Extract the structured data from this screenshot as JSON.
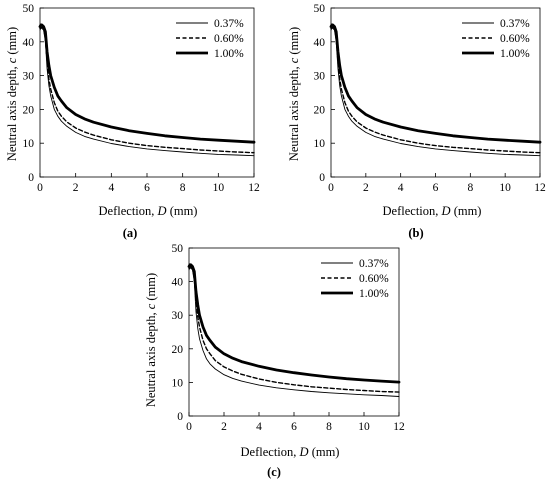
{
  "chart_data": [
    {
      "type": "line",
      "panel_label": "(a)",
      "xlabel_prefix": "Deflection,",
      "xlabel_var": "D",
      "xlabel_unit": "(mm)",
      "ylabel_prefix": "Neutral axis depth,",
      "ylabel_var": "c",
      "ylabel_unit": "(mm)",
      "xlim": [
        0,
        12
      ],
      "ylim": [
        0,
        50
      ],
      "xticks": [
        0,
        2,
        4,
        6,
        8,
        10,
        12
      ],
      "yticks": [
        0,
        10,
        20,
        30,
        40,
        50
      ],
      "grid": false,
      "legend_position": "top-right",
      "series": [
        {
          "name": "0.37%",
          "style": "thin-solid",
          "x": [
            0,
            0.05,
            0.1,
            0.2,
            0.3,
            0.4,
            0.5,
            0.6,
            0.8,
            1.0,
            1.2,
            1.5,
            2,
            2.5,
            3,
            4,
            5,
            6,
            7,
            8,
            9,
            10,
            11,
            12
          ],
          "y": [
            43.5,
            44,
            44,
            43.5,
            40,
            32,
            27,
            24,
            20,
            18,
            16.5,
            15,
            13.2,
            12,
            11.2,
            9.9,
            9,
            8.3,
            7.8,
            7.4,
            7,
            6.7,
            6.5,
            6.3
          ]
        },
        {
          "name": "0.60%",
          "style": "dashed",
          "x": [
            0,
            0.05,
            0.1,
            0.2,
            0.3,
            0.4,
            0.5,
            0.6,
            0.8,
            1.0,
            1.2,
            1.5,
            2,
            2.5,
            3,
            4,
            5,
            6,
            7,
            8,
            9,
            10,
            11,
            12
          ],
          "y": [
            44,
            44.3,
            44.3,
            44,
            41,
            34,
            29,
            26,
            22,
            19.5,
            18,
            16.3,
            14.5,
            13.3,
            12.4,
            11,
            10,
            9.3,
            8.8,
            8.4,
            8,
            7.7,
            7.4,
            7.2
          ]
        },
        {
          "name": "1.00%",
          "style": "thick-solid",
          "x": [
            0,
            0.05,
            0.1,
            0.2,
            0.3,
            0.4,
            0.5,
            0.6,
            0.8,
            1.0,
            1.2,
            1.5,
            2,
            2.5,
            3,
            4,
            5,
            6,
            7,
            8,
            9,
            10,
            11,
            12
          ],
          "y": [
            44.5,
            45,
            45,
            44.5,
            43,
            37,
            33,
            30,
            26.5,
            24,
            22.5,
            20.5,
            18.5,
            17.2,
            16.2,
            14.8,
            13.7,
            12.9,
            12.2,
            11.7,
            11.2,
            10.9,
            10.6,
            10.3
          ]
        }
      ]
    },
    {
      "type": "line",
      "panel_label": "(b)",
      "xlabel_prefix": "Deflection,",
      "xlabel_var": "D",
      "xlabel_unit": "(mm)",
      "ylabel_prefix": "Neutral axis depth,",
      "ylabel_var": "c",
      "ylabel_unit": "(mm)",
      "xlim": [
        0,
        12
      ],
      "ylim": [
        0,
        50
      ],
      "xticks": [
        0,
        2,
        4,
        6,
        8,
        10,
        12
      ],
      "yticks": [
        0,
        10,
        20,
        30,
        40,
        50
      ],
      "grid": false,
      "legend_position": "top-right",
      "series": [
        {
          "name": "0.37%",
          "style": "thin-solid",
          "x": [
            0,
            0.05,
            0.1,
            0.2,
            0.3,
            0.4,
            0.5,
            0.6,
            0.8,
            1.0,
            1.2,
            1.5,
            2,
            2.5,
            3,
            4,
            5,
            6,
            7,
            8,
            9,
            10,
            11,
            12
          ],
          "y": [
            43.5,
            44,
            44,
            43.5,
            40,
            32,
            27,
            24,
            20,
            18,
            16.5,
            15,
            13.2,
            12,
            11.2,
            9.9,
            9,
            8.3,
            7.8,
            7.4,
            7,
            6.7,
            6.5,
            6.3
          ]
        },
        {
          "name": "0.60%",
          "style": "dashed",
          "x": [
            0,
            0.05,
            0.1,
            0.2,
            0.3,
            0.4,
            0.5,
            0.6,
            0.8,
            1.0,
            1.2,
            1.5,
            2,
            2.5,
            3,
            4,
            5,
            6,
            7,
            8,
            9,
            10,
            11,
            12
          ],
          "y": [
            44,
            44.3,
            44.3,
            44,
            41,
            34,
            29,
            26,
            22,
            19.5,
            18,
            16.3,
            14.5,
            13.3,
            12.4,
            11,
            10,
            9.3,
            8.8,
            8.4,
            8,
            7.7,
            7.4,
            7.2
          ]
        },
        {
          "name": "1.00%",
          "style": "thick-solid",
          "x": [
            0,
            0.05,
            0.1,
            0.2,
            0.3,
            0.4,
            0.5,
            0.6,
            0.8,
            1.0,
            1.2,
            1.5,
            2,
            2.5,
            3,
            4,
            5,
            6,
            7,
            8,
            9,
            10,
            11,
            12
          ],
          "y": [
            44.5,
            45,
            45,
            44.5,
            43,
            37,
            33,
            30,
            26.5,
            24,
            22.5,
            20.5,
            18.5,
            17.2,
            16.2,
            14.8,
            13.7,
            12.9,
            12.2,
            11.7,
            11.2,
            10.9,
            10.6,
            10.3
          ]
        }
      ]
    },
    {
      "type": "line",
      "panel_label": "(c)",
      "xlabel_prefix": "Deflection,",
      "xlabel_var": "D",
      "xlabel_unit": "(mm)",
      "ylabel_prefix": "Neutral axis depth,",
      "ylabel_var": "c",
      "ylabel_unit": "(mm)",
      "xlim": [
        0,
        12
      ],
      "ylim": [
        0,
        50
      ],
      "xticks": [
        0,
        2,
        4,
        6,
        8,
        10,
        12
      ],
      "yticks": [
        0,
        10,
        20,
        30,
        40,
        50
      ],
      "grid": false,
      "legend_position": "top-right",
      "series": [
        {
          "name": "0.37%",
          "style": "thin-solid",
          "x": [
            0,
            0.05,
            0.1,
            0.2,
            0.3,
            0.4,
            0.5,
            0.6,
            0.8,
            1.0,
            1.2,
            1.5,
            2,
            2.5,
            3,
            4,
            5,
            6,
            7,
            8,
            9,
            10,
            11,
            12
          ],
          "y": [
            43.5,
            44,
            44,
            43.5,
            40,
            31,
            26,
            23,
            19.5,
            17,
            15.5,
            14,
            12.3,
            11.2,
            10.4,
            9.2,
            8.4,
            7.8,
            7.3,
            6.9,
            6.6,
            6.3,
            6.1,
            5.8
          ]
        },
        {
          "name": "0.60%",
          "style": "dashed",
          "x": [
            0,
            0.05,
            0.1,
            0.2,
            0.3,
            0.4,
            0.5,
            0.6,
            0.8,
            1.0,
            1.2,
            1.5,
            2,
            2.5,
            3,
            4,
            5,
            6,
            7,
            8,
            9,
            10,
            11,
            12
          ],
          "y": [
            44,
            44.3,
            44.3,
            44,
            41,
            34,
            29.5,
            26.5,
            22.5,
            20,
            18.5,
            16.5,
            14.6,
            13.4,
            12.4,
            11,
            10,
            9.3,
            8.7,
            8.3,
            7.9,
            7.6,
            7.3,
            7.1
          ]
        },
        {
          "name": "1.00%",
          "style": "thick-solid",
          "x": [
            0,
            0.05,
            0.1,
            0.2,
            0.3,
            0.4,
            0.5,
            0.6,
            0.8,
            1.0,
            1.2,
            1.5,
            2,
            2.5,
            3,
            4,
            5,
            6,
            7,
            8,
            9,
            10,
            11,
            12
          ],
          "y": [
            44.5,
            45,
            45,
            44.5,
            43,
            37,
            33,
            30,
            26.5,
            24,
            22.5,
            20.5,
            18.5,
            17.2,
            16.2,
            14.8,
            13.7,
            12.9,
            12.2,
            11.6,
            11.1,
            10.7,
            10.4,
            10.1
          ]
        }
      ]
    }
  ]
}
